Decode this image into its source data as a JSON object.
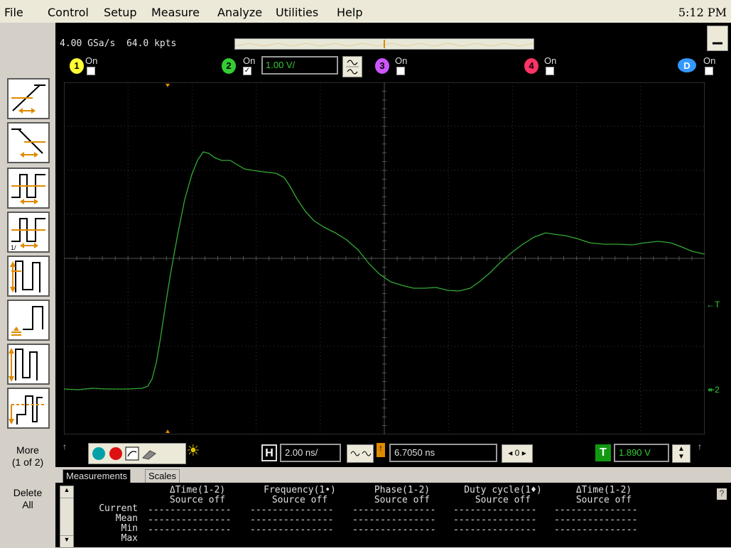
{
  "menu": {
    "items": [
      "File",
      "Control",
      "Setup",
      "Measure",
      "Analyze",
      "Utilities",
      "Help"
    ],
    "clock": "5:12 PM"
  },
  "acquisition": {
    "sample_rate": "4.00 GSa/s",
    "memory_depth": "64.0 kpts"
  },
  "channels": [
    {
      "number": "1",
      "state": "On",
      "enabled": false,
      "color": "#ffff33"
    },
    {
      "number": "2",
      "state": "On",
      "enabled": true,
      "color": "#33cc33",
      "scale": "1.00 V/"
    },
    {
      "number": "3",
      "state": "On",
      "enabled": false,
      "color": "#cc55ff"
    },
    {
      "number": "4",
      "state": "On",
      "enabled": false,
      "color": "#ff3366"
    },
    {
      "number": "D",
      "state": "On",
      "enabled": false,
      "color": "#3399ff"
    }
  ],
  "trace": {
    "color": "#33aa33",
    "trigger_marker": "T",
    "channel_marker": "2"
  },
  "sidebar": {
    "trigger_modes": [
      "rising-edge",
      "falling-edge",
      "pulse-width",
      "pulse-width-2",
      "runt",
      "setup-hold",
      "transition",
      "timeout"
    ],
    "more_label": "More",
    "more_page": "(1 of 2)",
    "delete_label": "Delete",
    "delete_all": "All"
  },
  "controls": {
    "horizontal_label": "H",
    "time_per_div": "2.00 ns/",
    "delay": "6.7050 ns",
    "delay_step": "0",
    "trigger_label": "T",
    "trigger_level": "1.890 V",
    "sun_icon": "☀"
  },
  "tabs": [
    "Measurements",
    "Scales"
  ],
  "measurements": {
    "row_labels": [
      "Current",
      "Mean",
      "Min",
      "Max"
    ],
    "columns": [
      {
        "header": "ΔTime(1-2)",
        "value": "Source off"
      },
      {
        "header": "Frequency(1•)",
        "value": "Source off"
      },
      {
        "header": "Phase(1-2)",
        "value": "Source off"
      },
      {
        "header": "Duty cycle(1♦)",
        "value": "Source off"
      },
      {
        "header": "ΔTime(1-2)",
        "value": "Source off"
      }
    ],
    "empty_value": "---------------",
    "help": "?"
  }
}
